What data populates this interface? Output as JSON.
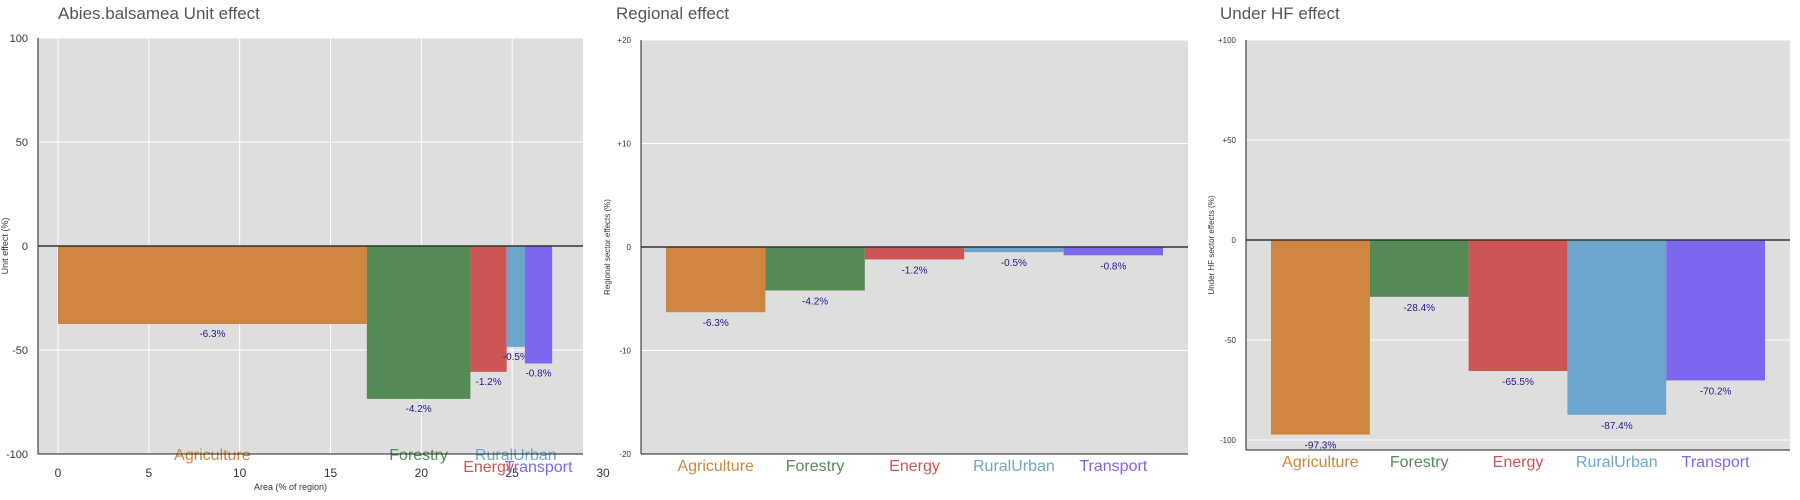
{
  "chart_data": [
    {
      "type": "bar",
      "title": "Abies.balsamea Unit effect",
      "xlabel": "Area (% of region)",
      "ylabel": "Unit effect (%)",
      "xlim": [
        0,
        30
      ],
      "ylim": [
        -100,
        100
      ],
      "xticks": [
        "0",
        "5",
        "10",
        "15",
        "20",
        "25",
        "30"
      ],
      "yticks": [
        "100",
        "50",
        "0",
        "-50",
        "-100"
      ],
      "grid": true,
      "categories": [
        "Agriculture",
        "Forestry",
        "Energy",
        "RuralUrban",
        "Transport"
      ],
      "widths": [
        17.0,
        5.7,
        2.0,
        1.0,
        1.5
      ],
      "values": [
        -37.5,
        -73.5,
        -60.5,
        -48.5,
        -56.5
      ],
      "labels": [
        "-6.3%",
        "-4.2%",
        "-1.2%",
        "-0.5%",
        "-0.8%"
      ]
    },
    {
      "type": "bar",
      "title": "Regional effect",
      "xlabel": "",
      "ylabel": "Regional sector effects (%)",
      "ylim": [
        -20,
        20
      ],
      "yticks": [
        "+20",
        "+10",
        "0",
        "-10",
        "-20"
      ],
      "grid": true,
      "categories": [
        "Agriculture",
        "Forestry",
        "Energy",
        "RuralUrban",
        "Transport"
      ],
      "values": [
        -6.3,
        -4.2,
        -1.2,
        -0.5,
        -0.8
      ],
      "labels": [
        "-6.3%",
        "-4.2%",
        "-1.2%",
        "-0.5%",
        "-0.8%"
      ]
    },
    {
      "type": "bar",
      "title": "Under HF effect",
      "xlabel": "",
      "ylabel": "Under HF sector effects (%)",
      "ylim": [
        -105,
        100
      ],
      "yticks": [
        "+100",
        "+50",
        "0",
        "-50",
        "-100"
      ],
      "grid": true,
      "categories": [
        "Agriculture",
        "Forestry",
        "Energy",
        "RuralUrban",
        "Transport"
      ],
      "values": [
        -97.3,
        -28.4,
        -65.5,
        -87.4,
        -70.2
      ],
      "labels": [
        "-97.3%",
        "-28.4%",
        "-65.5%",
        "-87.4%",
        "-70.2%"
      ]
    }
  ],
  "colors": {
    "Agriculture": "#cd853f",
    "Forestry": "#548b54",
    "Energy": "#cd5555",
    "RuralUrban": "#6ca6cd",
    "Transport": "#7b68ee",
    "panel_bg": "#dedede",
    "grid": "#ffffff",
    "zero_line": "#333333",
    "value_label": "#1a1a8c"
  }
}
